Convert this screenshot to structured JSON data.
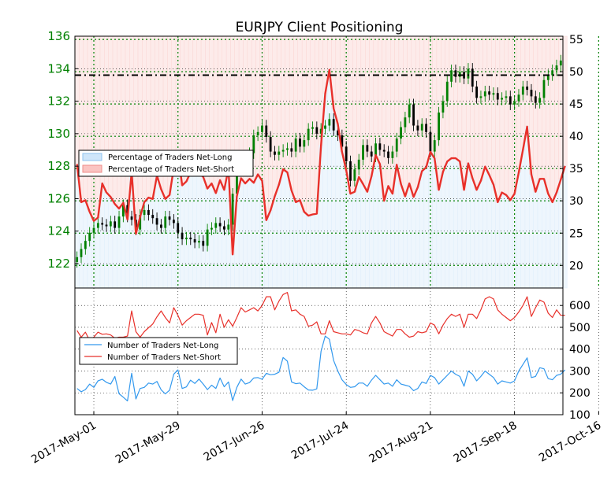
{
  "chart_data": [
    {
      "type": "candlestick-with-line",
      "title": "EURJPY Client Positioning",
      "dates": [
        "2017-May-01",
        "2017-May-29",
        "2017-Jun-26",
        "2017-Jul-24",
        "2017-Aug-21",
        "2017-Sep-18",
        "2017-Oct-16"
      ],
      "price_axis": {
        "ylim": [
          120.5,
          136
        ],
        "ticks": [
          122,
          124,
          126,
          128,
          130,
          132,
          134,
          136
        ],
        "color": "#008000"
      },
      "percent_axis": {
        "ylim": [
          16.5,
          55.5
        ],
        "ticks": [
          20,
          25,
          30,
          35,
          40,
          45,
          50,
          55
        ]
      },
      "reference_level": 133.6,
      "price_close": [
        122.4,
        122.9,
        123.4,
        123.9,
        124.2,
        124.5,
        124.4,
        124.3,
        124.6,
        124.2,
        124.9,
        125.6,
        124.9,
        124.7,
        124.1,
        125.0,
        125.3,
        125.0,
        124.8,
        124.4,
        124.2,
        124.9,
        124.7,
        124.5,
        123.9,
        123.5,
        123.6,
        123.5,
        123.3,
        123.4,
        123.1,
        124.1,
        124.2,
        124.5,
        124.3,
        124.1,
        124.4,
        126.3,
        127.7,
        128.5,
        128.1,
        128.8,
        129.9,
        130.1,
        130.5,
        129.8,
        128.9,
        128.7,
        128.9,
        129.0,
        129.1,
        128.9,
        129.7,
        129.2,
        129.6,
        130.3,
        130.4,
        130.0,
        130.3,
        130.5,
        130.9,
        130.2,
        129.9,
        129.2,
        128.3,
        127.1,
        127.8,
        128.4,
        129.3,
        128.9,
        128.6,
        129.4,
        129.0,
        128.9,
        128.5,
        128.9,
        129.7,
        130.4,
        131.0,
        131.8,
        130.5,
        130.2,
        130.6,
        130.1,
        128.9,
        129.6,
        131.3,
        132.0,
        133.2,
        133.9,
        133.5,
        133.8,
        133.4,
        134.0,
        132.9,
        132.2,
        132.3,
        132.6,
        132.4,
        132.5,
        132.1,
        132.2,
        132.3,
        131.8,
        132.0,
        132.4,
        132.9,
        132.7,
        132.3,
        131.9,
        132.2,
        133.3,
        133.6,
        133.9,
        134.2,
        134.5
      ],
      "pct_net_long": [
        35.7,
        29.8,
        30.1,
        28.3,
        26.9,
        27.4,
        32.7,
        31.3,
        30.6,
        29.5,
        28.8,
        29.7,
        27.1,
        34.5,
        24.9,
        27.5,
        29.8,
        30.5,
        30.3,
        33.9,
        31.8,
        30.3,
        30.9,
        35.1,
        37.3,
        32.4,
        33.0,
        34.4,
        35.4,
        34.3,
        33.7,
        31.9,
        32.7,
        31.2,
        33.2,
        31.7,
        35.0,
        21.7,
        30.7,
        33.5,
        32.7,
        33.4,
        32.8,
        34.1,
        33.1,
        27.0,
        28.5,
        30.7,
        32.5,
        34.9,
        34.4,
        31.6,
        29.8,
        30.1,
        28.3,
        27.7,
        27.9,
        28.0,
        38.6,
        46.6,
        50.3,
        44.3,
        41.9,
        37.6,
        34.7,
        31.1,
        31.4,
        33.7,
        32.6,
        31.4,
        33.8,
        37.1,
        35.7,
        30.0,
        32.3,
        31.1,
        35.6,
        32.6,
        30.7,
        32.7,
        30.6,
        32.1,
        34.6,
        35.2,
        37.6,
        36.6,
        31.7,
        34.5,
        36.1,
        36.6,
        36.6,
        36.1,
        31.7,
        35.8,
        33.5,
        31.7,
        33.1,
        35.3,
        34.0,
        32.5,
        29.8,
        31.3,
        30.9,
        30.1,
        31.1,
        34.4,
        37.9,
        41.5,
        34.1,
        31.4,
        33.4,
        33.4,
        31.1,
        29.8,
        31.3,
        33.3,
        35.4
      ],
      "series": [
        {
          "name": "Percentage of Traders Net-Long"
        },
        {
          "name": "Percentage of Traders Net-Short"
        }
      ]
    },
    {
      "type": "line",
      "ylim": [
        100,
        680
      ],
      "ticks": [
        100,
        200,
        300,
        400,
        500,
        600
      ],
      "net_long": [
        220,
        205,
        215,
        240,
        225,
        255,
        262,
        248,
        240,
        275,
        196,
        180,
        163,
        290,
        172,
        220,
        225,
        245,
        240,
        252,
        214,
        195,
        212,
        285,
        305,
        220,
        227,
        258,
        243,
        263,
        240,
        215,
        235,
        220,
        268,
        228,
        250,
        165,
        225,
        263,
        240,
        247,
        268,
        270,
        262,
        289,
        283,
        285,
        294,
        362,
        345,
        250,
        242,
        245,
        228,
        213,
        212,
        218,
        390,
        460,
        445,
        348,
        300,
        260,
        238,
        225,
        228,
        245,
        245,
        230,
        258,
        280,
        260,
        240,
        245,
        230,
        260,
        240,
        235,
        230,
        210,
        220,
        250,
        243,
        280,
        270,
        240,
        260,
        280,
        300,
        285,
        275,
        230,
        300,
        285,
        255,
        275,
        300,
        285,
        270,
        240,
        255,
        250,
        245,
        255,
        300,
        330,
        360,
        270,
        275,
        315,
        310,
        265,
        260,
        280,
        285,
        305
      ],
      "net_short": [
        485,
        455,
        478,
        440,
        455,
        478,
        468,
        470,
        465,
        450,
        455,
        455,
        460,
        575,
        480,
        455,
        480,
        498,
        515,
        548,
        575,
        545,
        520,
        590,
        555,
        510,
        530,
        545,
        560,
        560,
        555,
        465,
        522,
        475,
        560,
        500,
        535,
        505,
        545,
        590,
        570,
        580,
        590,
        575,
        600,
        640,
        640,
        580,
        620,
        650,
        660,
        575,
        580,
        560,
        550,
        505,
        510,
        525,
        470,
        470,
        530,
        480,
        475,
        470,
        470,
        465,
        490,
        485,
        475,
        470,
        520,
        550,
        520,
        480,
        470,
        460,
        490,
        490,
        470,
        455,
        460,
        480,
        475,
        480,
        520,
        510,
        470,
        510,
        540,
        560,
        550,
        560,
        500,
        560,
        560,
        540,
        580,
        630,
        640,
        630,
        580,
        560,
        545,
        530,
        545,
        570,
        600,
        640,
        550,
        590,
        625,
        615,
        565,
        545,
        580,
        555,
        555
      ],
      "series": [
        {
          "name": "Number of Traders Net-Long"
        },
        {
          "name": "Number of Traders Net-Short"
        }
      ]
    }
  ],
  "colors": {
    "net_long": "#3399ee",
    "net_short": "#e8302a",
    "price_up": "#008000",
    "price_down": "#000000",
    "grid": "#008000"
  }
}
